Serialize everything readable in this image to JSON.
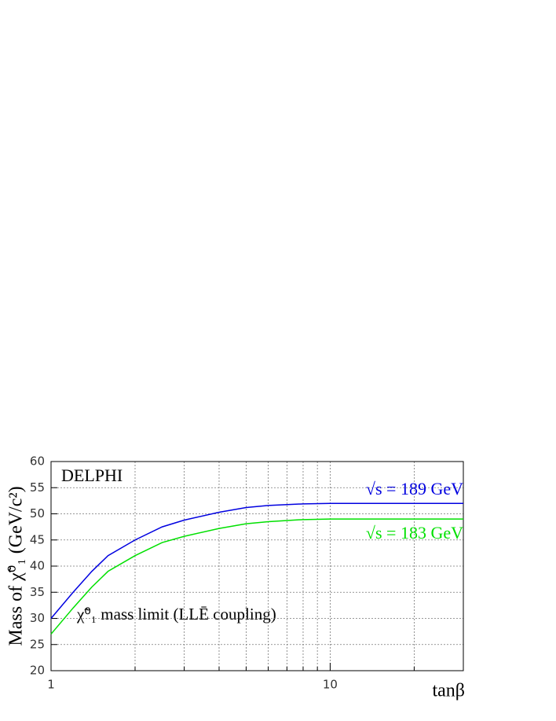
{
  "chart_data": {
    "type": "line",
    "title": "DELPHI",
    "annotation": "χ̃⁰₁ mass limit (LLĒ coupling)",
    "x_label": "tanβ",
    "y_label": "Mass of χ̃⁰₁  (GeV/c²)",
    "x": [
      1,
      1.2,
      1.4,
      1.6,
      2,
      2.5,
      3,
      4,
      5,
      6,
      8,
      10,
      30
    ],
    "series": [
      {
        "name": "√s = 189 GeV",
        "color": "#0000e0",
        "values": [
          30,
          35,
          39,
          42,
          45,
          47.5,
          48.8,
          50.3,
          51.2,
          51.6,
          51.9,
          52,
          52
        ]
      },
      {
        "name": "√s = 183 GeV",
        "color": "#00e000",
        "values": [
          27,
          32,
          36,
          39,
          42,
          44.5,
          45.7,
          47.2,
          48.1,
          48.5,
          48.9,
          49,
          49
        ]
      }
    ],
    "xlim": [
      1,
      30
    ],
    "xticks": [
      1,
      10
    ],
    "x_minor_grid": [
      2,
      3,
      4,
      5,
      6,
      7,
      8,
      9,
      20
    ],
    "x_log": true,
    "ylim": [
      20,
      60
    ],
    "yticks": [
      20,
      25,
      30,
      35,
      40,
      45,
      50,
      55,
      60
    ],
    "grid": true
  }
}
